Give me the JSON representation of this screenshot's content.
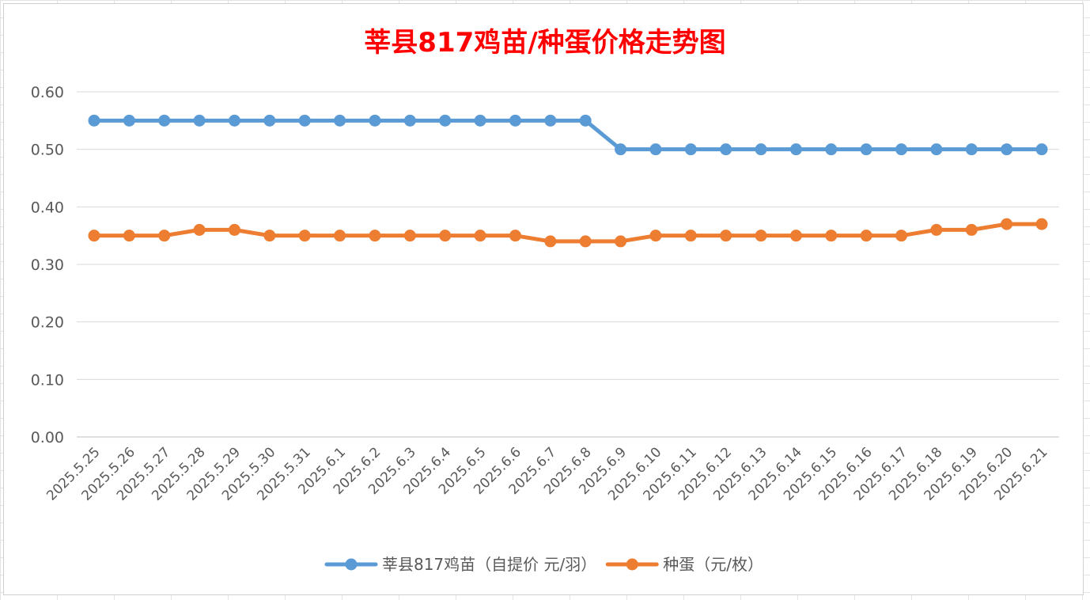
{
  "chart_data": {
    "type": "line",
    "title": "莘县817鸡苗/种蛋价格走势图",
    "categories": [
      "2025.5.25",
      "2025.5.26",
      "2025.5.27",
      "2025.5.28",
      "2025.5.29",
      "2025.5.30",
      "2025.5.31",
      "2025.6.1",
      "2025.6.2",
      "2025.6.3",
      "2025.6.4",
      "2025.6.5",
      "2025.6.6",
      "2025.6.7",
      "2025.6.8",
      "2025.6.9",
      "2025.6.10",
      "2025.6.11",
      "2025.6.12",
      "2025.6.13",
      "2025.6.14",
      "2025.6.15",
      "2025.6.16",
      "2025.6.17",
      "2025.6.18",
      "2025.6.19",
      "2025.6.20",
      "2025.6.21"
    ],
    "series": [
      {
        "name": "莘县817鸡苗（自提价 元/羽）",
        "color": "#5b9bd5",
        "values": [
          0.55,
          0.55,
          0.55,
          0.55,
          0.55,
          0.55,
          0.55,
          0.55,
          0.55,
          0.55,
          0.55,
          0.55,
          0.55,
          0.55,
          0.55,
          0.5,
          0.5,
          0.5,
          0.5,
          0.5,
          0.5,
          0.5,
          0.5,
          0.5,
          0.5,
          0.5,
          0.5,
          0.5
        ]
      },
      {
        "name": "种蛋（元/枚）",
        "color": "#ed7d31",
        "values": [
          0.35,
          0.35,
          0.35,
          0.36,
          0.36,
          0.35,
          0.35,
          0.35,
          0.35,
          0.35,
          0.35,
          0.35,
          0.35,
          0.34,
          0.34,
          0.34,
          0.35,
          0.35,
          0.35,
          0.35,
          0.35,
          0.35,
          0.35,
          0.35,
          0.36,
          0.36,
          0.37,
          0.37
        ]
      }
    ],
    "yticks": [
      "0.00",
      "0.10",
      "0.20",
      "0.30",
      "0.40",
      "0.50",
      "0.60"
    ],
    "ylim": [
      0,
      0.6
    ],
    "grid": true,
    "legend": "bottom",
    "title_color": "#ff0000"
  }
}
